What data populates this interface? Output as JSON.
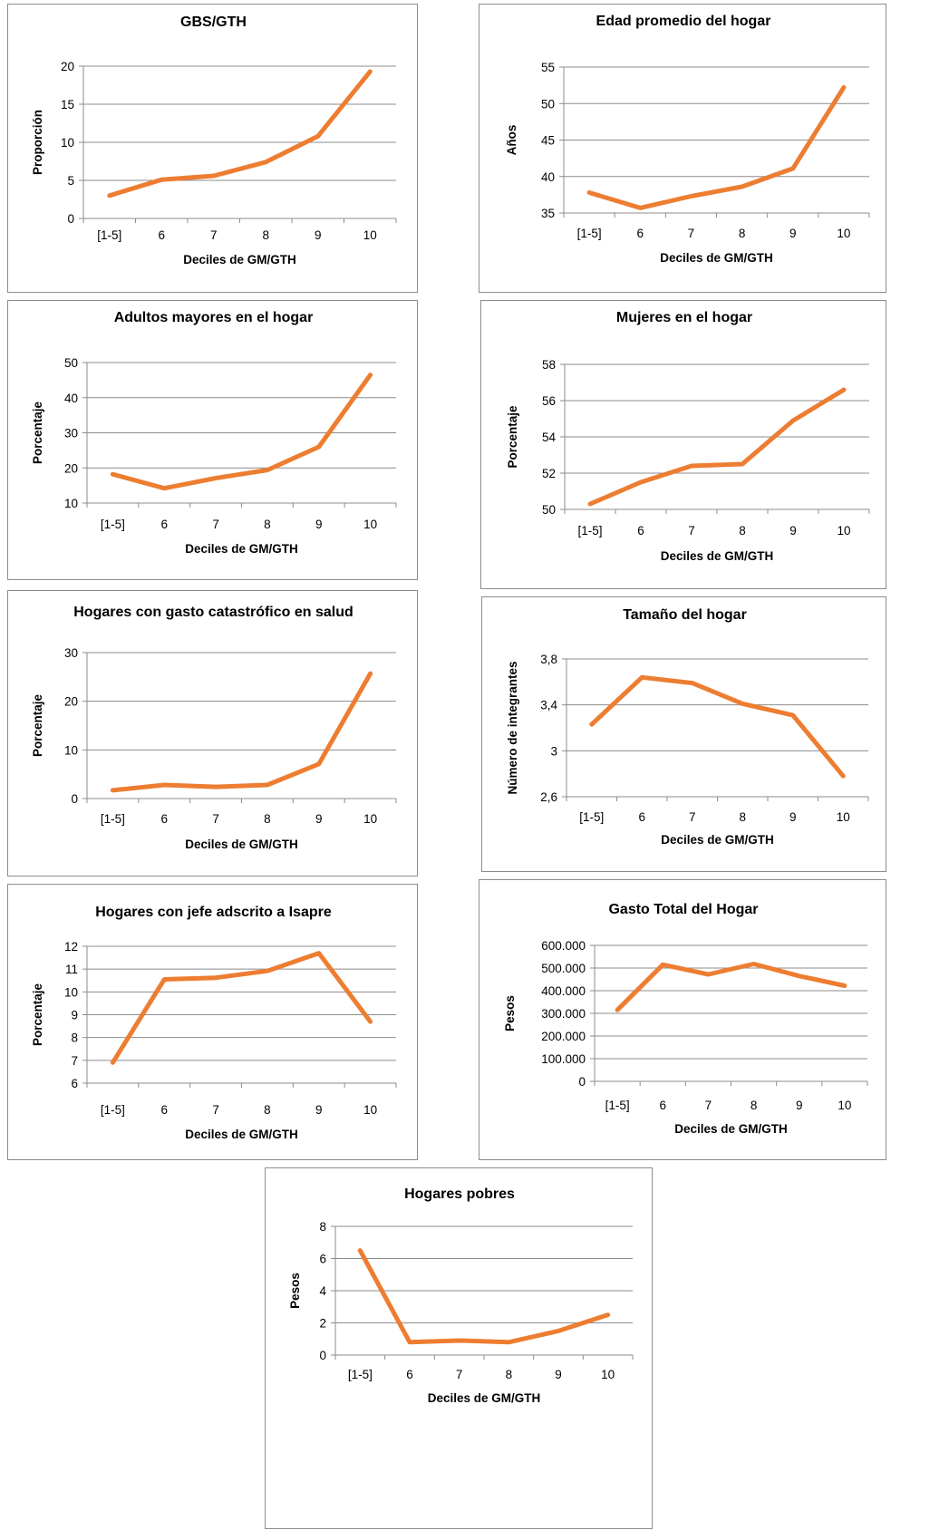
{
  "colors": {
    "series": "#ED7D31",
    "grid": "#8C8C8C"
  },
  "chart_data": [
    {
      "type": "line",
      "title": "GBS/GTH",
      "xlabel": "Deciles de GM/GTH",
      "ylabel": "Proporción",
      "categories": [
        "[1-5]",
        "6",
        "7",
        "8",
        "9",
        "10"
      ],
      "yticks": [
        "0",
        "5",
        "10",
        "15",
        "20"
      ],
      "ylim": [
        0,
        20
      ],
      "grid": true,
      "series": [
        {
          "values": [
            3.0,
            5.1,
            5.6,
            7.4,
            10.8,
            19.3
          ]
        }
      ]
    },
    {
      "type": "line",
      "title": "Edad promedio del hogar",
      "xlabel": "Deciles de GM/GTH",
      "ylabel": "Años",
      "categories": [
        "[1-5]",
        "6",
        "7",
        "8",
        "9",
        "10"
      ],
      "yticks": [
        "35",
        "40",
        "45",
        "50",
        "55"
      ],
      "ylim": [
        35,
        55
      ],
      "grid": true,
      "series": [
        {
          "values": [
            37.8,
            35.7,
            37.3,
            38.6,
            41.1,
            52.2
          ]
        }
      ]
    },
    {
      "type": "line",
      "title": "Adultos mayores en el hogar",
      "xlabel": "Deciles de GM/GTH",
      "ylabel": "Porcentaje",
      "categories": [
        "[1-5]",
        "6",
        "7",
        "8",
        "9",
        "10"
      ],
      "yticks": [
        "10",
        "20",
        "30",
        "40",
        "50"
      ],
      "ylim": [
        10,
        50
      ],
      "grid": true,
      "series": [
        {
          "values": [
            18.2,
            14.2,
            17.1,
            19.4,
            26.0,
            46.5
          ]
        }
      ]
    },
    {
      "type": "line",
      "title": "Mujeres en el hogar",
      "xlabel": "Deciles de GM/GTH",
      "ylabel": "Porcentaje",
      "categories": [
        "[1-5]",
        "6",
        "7",
        "8",
        "9",
        "10"
      ],
      "yticks": [
        "50",
        "52",
        "54",
        "56",
        "58"
      ],
      "ylim": [
        50,
        58
      ],
      "grid": true,
      "series": [
        {
          "values": [
            50.3,
            51.5,
            52.4,
            52.5,
            54.9,
            56.6
          ]
        }
      ]
    },
    {
      "type": "line",
      "title": "Hogares con gasto catastrófico en salud",
      "xlabel": "Deciles de GM/GTH",
      "ylabel": "Porcentaje",
      "categories": [
        "[1-5]",
        "6",
        "7",
        "8",
        "9",
        "10"
      ],
      "yticks": [
        "0",
        "10",
        "20",
        "30"
      ],
      "ylim": [
        0,
        30
      ],
      "grid": true,
      "series": [
        {
          "values": [
            1.7,
            2.8,
            2.4,
            2.8,
            7.1,
            25.7
          ]
        }
      ]
    },
    {
      "type": "line",
      "title": "Tamaño del hogar",
      "xlabel": "Deciles de GM/GTH",
      "ylabel": "Número de integrantes",
      "categories": [
        "[1-5]",
        "6",
        "7",
        "8",
        "9",
        "10"
      ],
      "yticks": [
        "2,6",
        "3",
        "3,4",
        "3,8"
      ],
      "ylim": [
        2.6,
        3.8
      ],
      "grid": true,
      "series": [
        {
          "values": [
            3.23,
            3.64,
            3.59,
            3.41,
            3.31,
            2.78
          ]
        }
      ]
    },
    {
      "type": "line",
      "title": "Hogares con jefe adscrito a Isapre",
      "xlabel": "Deciles de GM/GTH",
      "ylabel": "Porcentaje",
      "categories": [
        "[1-5]",
        "6",
        "7",
        "8",
        "9",
        "10"
      ],
      "yticks": [
        "6",
        "7",
        "8",
        "9",
        "10",
        "11",
        "12"
      ],
      "ylim": [
        6,
        12
      ],
      "grid": true,
      "series": [
        {
          "values": [
            6.9,
            10.55,
            10.62,
            10.92,
            11.7,
            8.7
          ]
        }
      ]
    },
    {
      "type": "line",
      "title": "Gasto Total del Hogar",
      "xlabel": "Deciles de GM/GTH",
      "ylabel": "Pesos",
      "categories": [
        "[1-5]",
        "6",
        "7",
        "8",
        "9",
        "10"
      ],
      "yticks": [
        "0",
        "100.000",
        "200.000",
        "300.000",
        "400.000",
        "500.000",
        "600.000"
      ],
      "ylim": [
        0,
        600000
      ],
      "grid": true,
      "series": [
        {
          "values": [
            315000,
            515000,
            472000,
            518000,
            465000,
            422000
          ]
        }
      ]
    },
    {
      "type": "line",
      "title": "Hogares pobres",
      "xlabel": "Deciles de GM/GTH",
      "ylabel": "Pesos",
      "categories": [
        "[1-5]",
        "6",
        "7",
        "8",
        "9",
        "10"
      ],
      "yticks": [
        "0",
        "2",
        "4",
        "6",
        "8"
      ],
      "ylim": [
        0,
        8
      ],
      "grid": true,
      "series": [
        {
          "values": [
            6.5,
            0.8,
            0.9,
            0.8,
            1.5,
            2.5
          ]
        }
      ]
    }
  ]
}
